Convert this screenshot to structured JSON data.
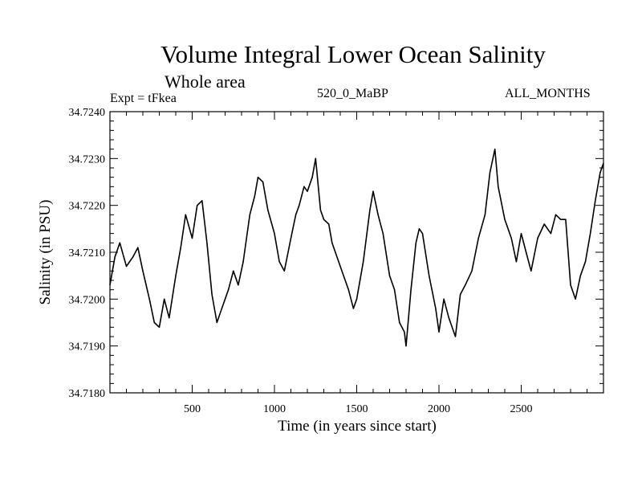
{
  "chart_data": {
    "type": "line",
    "title": "Volume Integral Lower Ocean Salinity",
    "subtitle": "Whole area",
    "annotations": {
      "left": "Expt = tFkea",
      "center": "520_0_MaBP",
      "right": "ALL_MONTHS"
    },
    "xlabel": "Time (in years since start)",
    "ylabel": "Salinity (in PSU)",
    "xlim": [
      0,
      3000
    ],
    "ylim": [
      34.718,
      34.724
    ],
    "x_ticks": [
      500,
      1000,
      1500,
      2000,
      2500
    ],
    "x_tick_labels": [
      "500",
      "1000",
      "1500",
      "2000",
      "2500"
    ],
    "y_ticks": [
      34.718,
      34.719,
      34.72,
      34.721,
      34.722,
      34.723,
      34.724
    ],
    "y_tick_labels": [
      "34.7180",
      "34.7190",
      "34.7200",
      "34.7210",
      "34.7220",
      "34.7230",
      "34.7240"
    ],
    "grid": false,
    "line_color": "#000000",
    "series": [
      {
        "x": [
          0,
          30,
          60,
          100,
          140,
          170,
          200,
          240,
          270,
          300,
          330,
          360,
          400,
          430,
          460,
          500,
          530,
          560,
          590,
          620,
          650,
          680,
          720,
          750,
          780,
          810,
          850,
          880,
          900,
          930,
          960,
          1000,
          1030,
          1060,
          1100,
          1130,
          1150,
          1180,
          1200,
          1230,
          1250,
          1280,
          1300,
          1330,
          1350,
          1400,
          1450,
          1480,
          1500,
          1540,
          1580,
          1600,
          1630,
          1660,
          1700,
          1730,
          1760,
          1790,
          1800,
          1830,
          1860,
          1880,
          1900,
          1940,
          1980,
          2000,
          2030,
          2060,
          2100,
          2130,
          2160,
          2200,
          2240,
          2280,
          2310,
          2340,
          2360,
          2400,
          2440,
          2470,
          2500,
          2530,
          2560,
          2600,
          2640,
          2680,
          2710,
          2740,
          2770,
          2800,
          2830,
          2860,
          2890,
          2920,
          2950,
          2980,
          3000
        ],
        "y": [
          34.7203,
          34.7209,
          34.7212,
          34.7207,
          34.7209,
          34.7211,
          34.7206,
          34.72,
          34.7195,
          34.7194,
          34.72,
          34.7196,
          34.7205,
          34.7211,
          34.7218,
          34.7213,
          34.722,
          34.7221,
          34.7212,
          34.7201,
          34.7195,
          34.7198,
          34.7202,
          34.7206,
          34.7203,
          34.7208,
          34.7218,
          34.7222,
          34.7226,
          34.7225,
          34.7219,
          34.7214,
          34.7208,
          34.7206,
          34.7213,
          34.7218,
          34.722,
          34.7224,
          34.7223,
          34.7226,
          34.723,
          34.7219,
          34.7217,
          34.7216,
          34.7212,
          34.7207,
          34.7202,
          34.7198,
          34.72,
          34.7208,
          34.7219,
          34.7223,
          34.7218,
          34.7214,
          34.7205,
          34.7202,
          34.7195,
          34.7193,
          34.719,
          34.7202,
          34.7212,
          34.7215,
          34.7214,
          34.7205,
          34.7198,
          34.7193,
          34.72,
          34.7196,
          34.7192,
          34.7201,
          34.7203,
          34.7206,
          34.7213,
          34.7218,
          34.7227,
          34.7232,
          34.7224,
          34.7217,
          34.7213,
          34.7208,
          34.7214,
          34.721,
          34.7206,
          34.7213,
          34.7216,
          34.7214,
          34.7218,
          34.7217,
          34.7217,
          34.7203,
          34.72,
          34.7205,
          34.7208,
          34.7214,
          34.7221,
          34.7227,
          34.7229
        ]
      }
    ]
  }
}
